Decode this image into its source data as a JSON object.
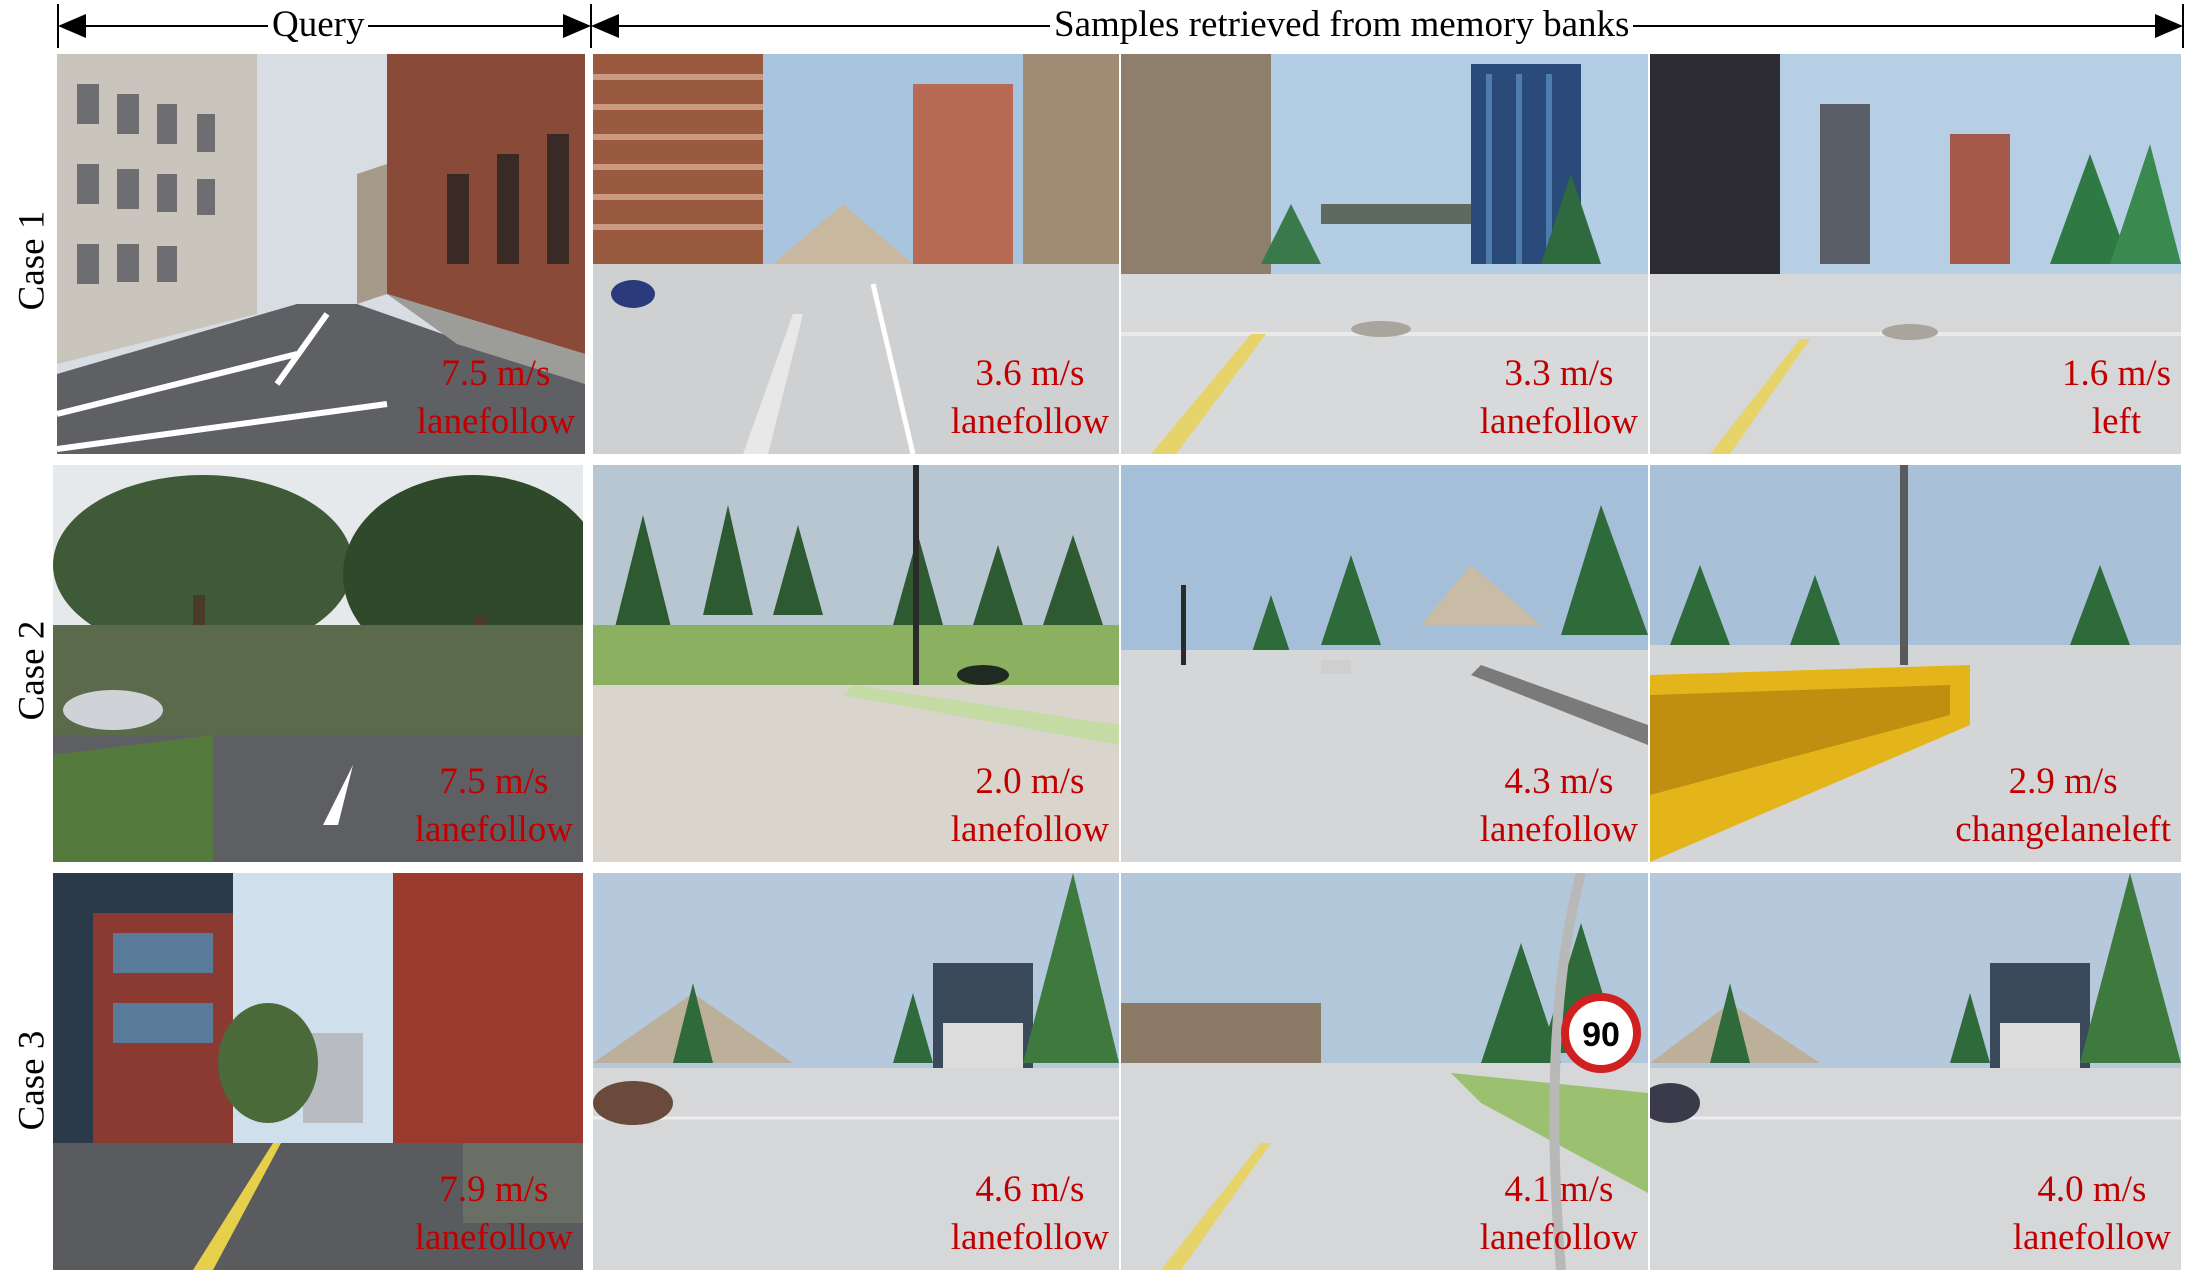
{
  "header": {
    "query_label": "Query",
    "samples_label": "Samples retrieved from memory banks"
  },
  "cases": [
    {
      "label": "Case 1",
      "query": {
        "speed": "7.5 m/s",
        "command": "lanefollow"
      },
      "samples": [
        {
          "speed": "3.6 m/s",
          "command": "lanefollow"
        },
        {
          "speed": "3.3 m/s",
          "command": "lanefollow"
        },
        {
          "speed": "1.6 m/s",
          "command": "left"
        }
      ]
    },
    {
      "label": "Case 2",
      "query": {
        "speed": "7.5 m/s",
        "command": "lanefollow"
      },
      "samples": [
        {
          "speed": "2.0 m/s",
          "command": "lanefollow"
        },
        {
          "speed": "4.3 m/s",
          "command": "lanefollow"
        },
        {
          "speed": "2.9 m/s",
          "command": "changelaneleft"
        }
      ]
    },
    {
      "label": "Case 3",
      "query": {
        "speed": "7.9 m/s",
        "command": "lanefollow"
      },
      "samples": [
        {
          "speed": "4.6 m/s",
          "command": "lanefollow"
        },
        {
          "speed": "4.1 m/s",
          "command": "lanefollow"
        },
        {
          "speed": "4.0 m/s",
          "command": "lanefollow"
        }
      ]
    }
  ],
  "sign": {
    "speed_limit": "90"
  }
}
